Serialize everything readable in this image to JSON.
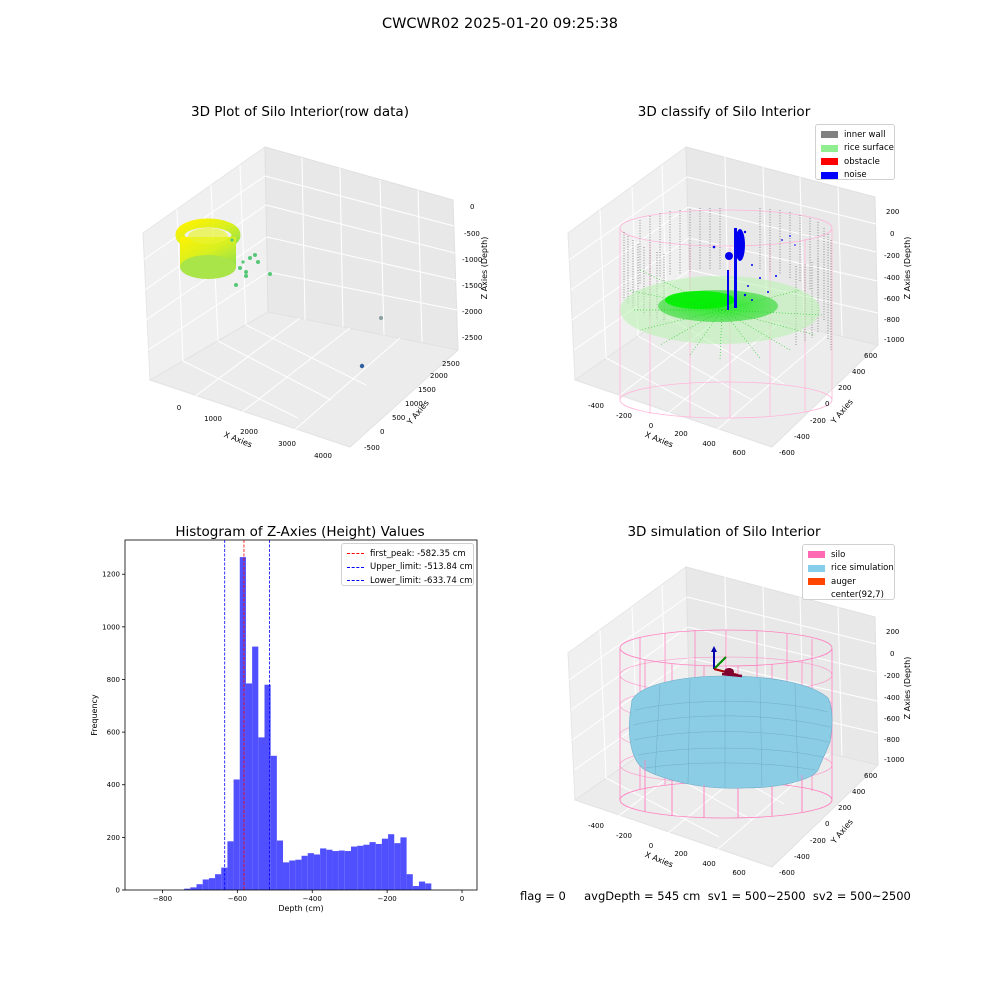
{
  "suptitle": "CWCWR02 2025-01-20 09:25:38",
  "plots": {
    "raw": {
      "title": "3D Plot of Silo Interior(row data)",
      "xlabel": "X Axies",
      "ylabel": "Y Axies",
      "zlabel": "Z Axies (Depth)",
      "xticks": [
        "0",
        "1000",
        "2000",
        "3000",
        "4000"
      ],
      "yticks": [
        "-500",
        "0",
        "500",
        "1000",
        "1500",
        "2000",
        "2500"
      ],
      "zticks": [
        "0",
        "-500",
        "-1000",
        "-1500",
        "-2000",
        "-2500"
      ]
    },
    "classify": {
      "title": "3D classify of Silo Interior",
      "xlabel": "X Axies",
      "ylabel": "Y Axies",
      "zlabel": "Z Axies (Depth)",
      "xticks": [
        "-400",
        "-200",
        "0",
        "200",
        "400",
        "600"
      ],
      "yticks": [
        "-600",
        "-400",
        "-200",
        "0",
        "200",
        "400",
        "600"
      ],
      "zticks": [
        "200",
        "0",
        "-200",
        "-400",
        "-600",
        "-800",
        "-1000"
      ],
      "legend": [
        {
          "label": "inner wall",
          "color": "#808080"
        },
        {
          "label": "rice surface",
          "color": "#90ee90"
        },
        {
          "label": "obstacle",
          "color": "#ff0000"
        },
        {
          "label": "noise",
          "color": "#0000ff"
        }
      ]
    },
    "simulation": {
      "title": "3D simulation of Silo Interior",
      "xlabel": "X Axies",
      "ylabel": "Y Axies",
      "zlabel": "Z Axies (Depth)",
      "xticks": [
        "-400",
        "-200",
        "0",
        "200",
        "400",
        "600"
      ],
      "yticks": [
        "-600",
        "-400",
        "-200",
        "0",
        "200",
        "400",
        "600"
      ],
      "zticks": [
        "200",
        "0",
        "-200",
        "-400",
        "-600",
        "-800",
        "-1000"
      ],
      "legend": [
        {
          "label": "silo",
          "color": "#ff69b4"
        },
        {
          "label": "rice simulation",
          "color": "#87ceeb"
        },
        {
          "label": "auger",
          "color": "#ff4500"
        },
        {
          "label": "center(92,7)",
          "color": ""
        }
      ]
    }
  },
  "chart_data": {
    "type": "bar",
    "title": "Histogram of Z-Axies (Height) Values",
    "xlabel": "Depth (cm)",
    "ylabel": "Frequency",
    "xlim": [
      -900,
      40
    ],
    "ylim": [
      0,
      1330
    ],
    "xticks": [
      -800,
      -600,
      -400,
      -200,
      0
    ],
    "yticks": [
      0,
      200,
      400,
      600,
      800,
      1000,
      1200
    ],
    "bin_width": 16.5,
    "bin_starts": [
      -742,
      -725.5,
      -709,
      -692.5,
      -676,
      -659.5,
      -643,
      -626.5,
      -610,
      -593.5,
      -577,
      -560.5,
      -544,
      -527.5,
      -511,
      -494.5,
      -478,
      -461.5,
      -445,
      -428.5,
      -412,
      -395.5,
      -379,
      -362.5,
      -346,
      -329.5,
      -313,
      -296.5,
      -280,
      -263.5,
      -247,
      -230.5,
      -214,
      -197.5,
      -181,
      -164.5,
      -148,
      -131.5,
      -115,
      -98.5,
      -82,
      -65.5,
      -49,
      -32.5,
      -16
    ],
    "values": [
      5,
      10,
      22,
      40,
      45,
      60,
      85,
      185,
      420,
      1265,
      785,
      925,
      580,
      780,
      510,
      188,
      105,
      112,
      115,
      130,
      140,
      135,
      158,
      153,
      148,
      150,
      148,
      165,
      168,
      172,
      182,
      175,
      195,
      212,
      178,
      200,
      60,
      15,
      32,
      25,
      0,
      0,
      0,
      0,
      0
    ],
    "color": "#5050ff",
    "lines": [
      {
        "label": "first_peak: -582.35 cm",
        "x": -582.35,
        "color": "#ff0000"
      },
      {
        "label": "Upper_limit: -513.84 cm",
        "x": -513.84,
        "color": "#0000ff"
      },
      {
        "label": "Lower_limit: -633.74 cm",
        "x": -633.74,
        "color": "#0000ff"
      }
    ],
    "legend_position": "top-right"
  },
  "status": {
    "text": "flag = 0     avgDepth = 545 cm  sv1 = 500~2500  sv2 = 500~2500"
  }
}
